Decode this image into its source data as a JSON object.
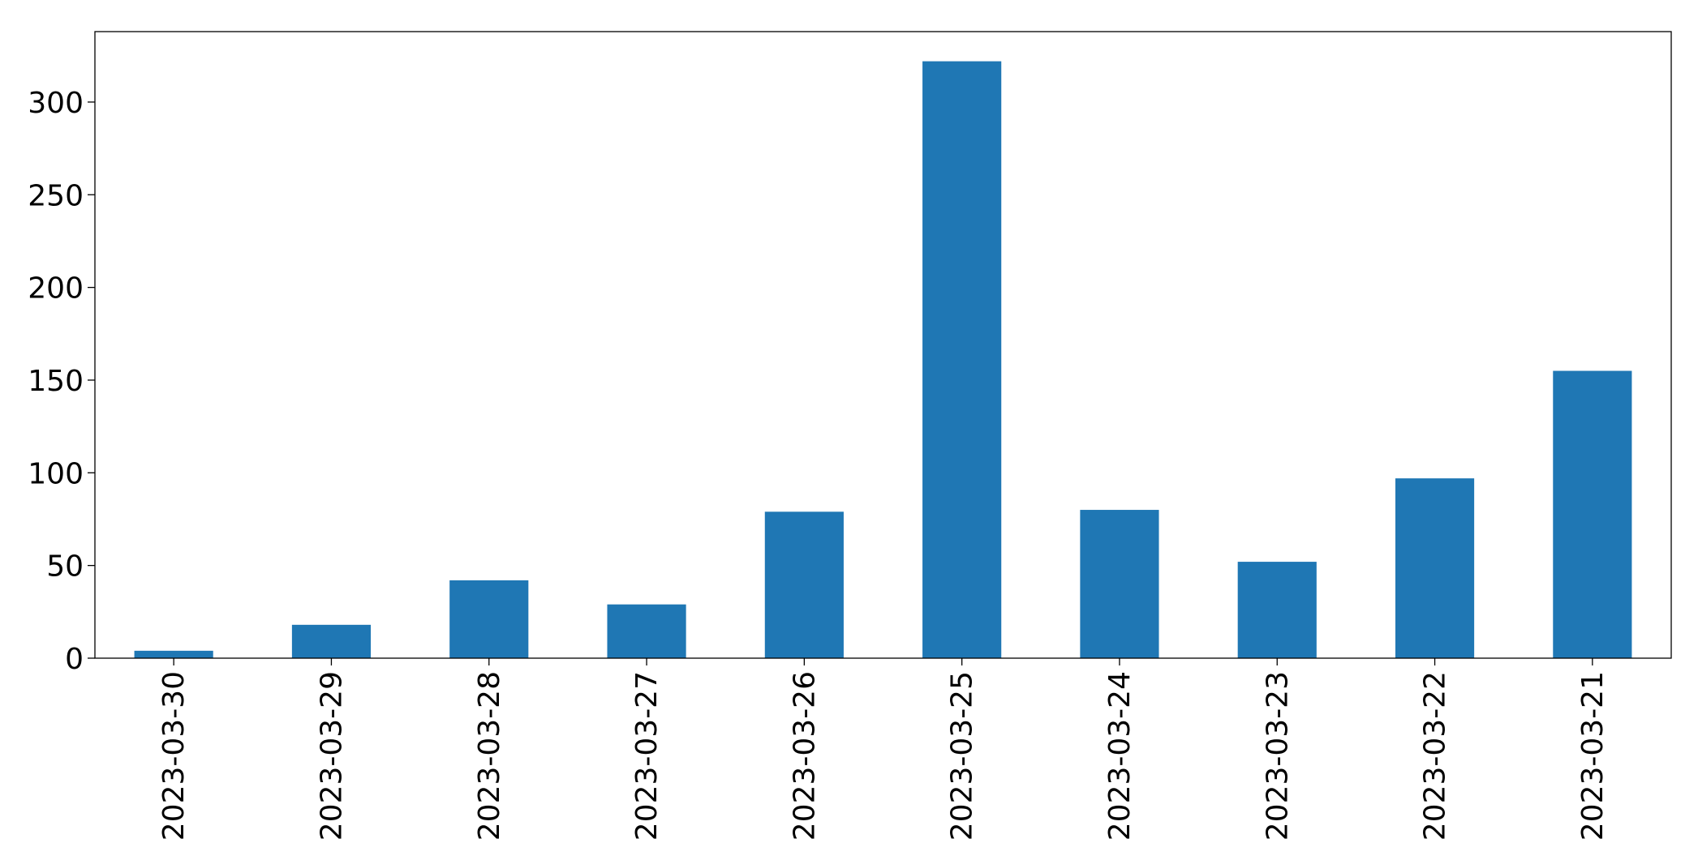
{
  "chart_data": {
    "type": "bar",
    "title": "",
    "xlabel": "",
    "ylabel": "",
    "categories": [
      "2023-03-30",
      "2023-03-29",
      "2023-03-28",
      "2023-03-27",
      "2023-03-26",
      "2023-03-25",
      "2023-03-24",
      "2023-03-23",
      "2023-03-22",
      "2023-03-21"
    ],
    "values": [
      4,
      18,
      42,
      29,
      79,
      322,
      80,
      52,
      97,
      155
    ],
    "ylim": [
      0,
      338
    ],
    "yticks": [
      "0",
      "50",
      "100",
      "150",
      "200",
      "250",
      "300"
    ],
    "bar_color": "#1f77b4",
    "grid": false,
    "legend": "none"
  }
}
